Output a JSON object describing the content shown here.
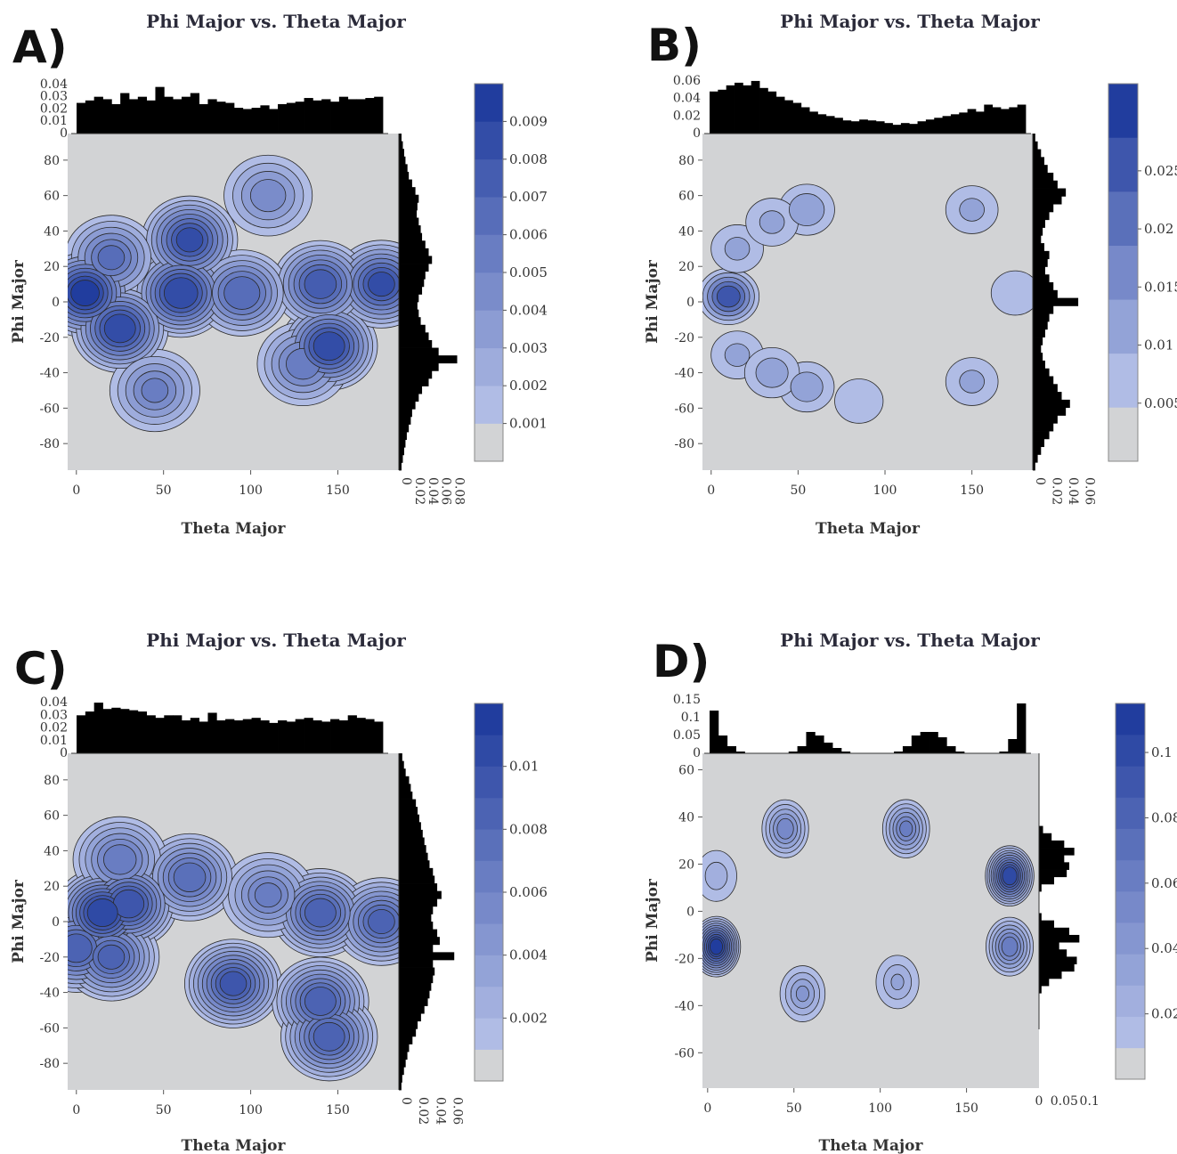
{
  "chart_data": [
    {
      "panel_label": "A)",
      "type": "contour",
      "title": "Phi Major vs. Theta Major",
      "xlabel": "Theta Major",
      "ylabel": "Phi Major",
      "xlim": [
        -5,
        185
      ],
      "ylim": [
        -95,
        95
      ],
      "xticks": [
        0,
        50,
        100,
        150
      ],
      "yticks": [
        -80,
        -60,
        -40,
        -20,
        0,
        20,
        40,
        60,
        80
      ],
      "top_hist_ticks": [
        "0",
        "0.01",
        "0.02",
        "0.03",
        "0.04"
      ],
      "top_hist_max": 0.045,
      "top_hist_values": [
        0.025,
        0.027,
        0.03,
        0.028,
        0.024,
        0.033,
        0.028,
        0.03,
        0.027,
        0.038,
        0.03,
        0.028,
        0.03,
        0.033,
        0.024,
        0.028,
        0.026,
        0.025,
        0.021,
        0.02,
        0.021,
        0.023,
        0.02,
        0.024,
        0.025,
        0.026,
        0.029,
        0.027,
        0.028,
        0.026,
        0.03,
        0.028,
        0.028,
        0.029,
        0.03
      ],
      "side_hist_ticks": [
        "0",
        "0.02",
        "0.04",
        "0.06",
        "0.08"
      ],
      "side_hist_max": 0.09,
      "side_hist_values": [
        0.004,
        0.006,
        0.008,
        0.01,
        0.013,
        0.015,
        0.02,
        0.025,
        0.03,
        0.028,
        0.027,
        0.03,
        0.033,
        0.035,
        0.04,
        0.045,
        0.05,
        0.045,
        0.04,
        0.038,
        0.035,
        0.03,
        0.028,
        0.03,
        0.033,
        0.04,
        0.045,
        0.05,
        0.06,
        0.088,
        0.06,
        0.05,
        0.045,
        0.035,
        0.03,
        0.025,
        0.02,
        0.018,
        0.015,
        0.012,
        0.01,
        0.008,
        0.006,
        0.004
      ],
      "colorbar_ticks": [
        "0.001",
        "0.002",
        "0.003",
        "0.004",
        "0.005",
        "0.006",
        "0.007",
        "0.008",
        "0.009"
      ],
      "levels": [
        0,
        0.001,
        0.002,
        0.003,
        0.004,
        0.005,
        0.006,
        0.007,
        0.008,
        0.009
      ],
      "density_peaks": [
        {
          "theta": 5,
          "phi": 5,
          "value": 0.0092
        },
        {
          "theta": 60,
          "phi": 5,
          "value": 0.0088
        },
        {
          "theta": 25,
          "phi": -15,
          "value": 0.0085
        },
        {
          "theta": 65,
          "phi": 35,
          "value": 0.008
        },
        {
          "theta": 145,
          "phi": -25,
          "value": 0.0085
        },
        {
          "theta": 175,
          "phi": 10,
          "value": 0.008
        },
        {
          "theta": 140,
          "phi": 10,
          "value": 0.0075
        },
        {
          "theta": 95,
          "phi": 5,
          "value": 0.0068
        },
        {
          "theta": 20,
          "phi": 25,
          "value": 0.006
        },
        {
          "theta": 130,
          "phi": -35,
          "value": 0.0055
        },
        {
          "theta": 45,
          "phi": -50,
          "value": 0.005
        },
        {
          "theta": 110,
          "phi": 60,
          "value": 0.0045
        }
      ]
    },
    {
      "panel_label": "B)",
      "type": "contour",
      "title": "Phi Major vs. Theta Major",
      "xlabel": "Theta Major",
      "ylabel": "Phi Major",
      "xlim": [
        -5,
        185
      ],
      "ylim": [
        -95,
        95
      ],
      "xticks": [
        0,
        50,
        100,
        150
      ],
      "yticks": [
        -80,
        -60,
        -40,
        -20,
        0,
        20,
        40,
        60,
        80
      ],
      "top_hist_ticks": [
        "0",
        "0.02",
        "0.04",
        "0.06"
      ],
      "top_hist_max": 0.065,
      "top_hist_values": [
        0.048,
        0.05,
        0.055,
        0.058,
        0.055,
        0.06,
        0.052,
        0.048,
        0.042,
        0.038,
        0.035,
        0.03,
        0.025,
        0.022,
        0.02,
        0.018,
        0.015,
        0.014,
        0.016,
        0.015,
        0.014,
        0.012,
        0.01,
        0.012,
        0.011,
        0.014,
        0.016,
        0.018,
        0.02,
        0.022,
        0.024,
        0.028,
        0.025,
        0.033,
        0.03,
        0.028,
        0.03,
        0.033
      ],
      "side_hist_ticks": [
        "0",
        "0.02",
        "0.04",
        "0.06"
      ],
      "side_hist_max": 0.07,
      "side_hist_values": [
        0.003,
        0.006,
        0.01,
        0.014,
        0.018,
        0.025,
        0.03,
        0.04,
        0.035,
        0.025,
        0.02,
        0.015,
        0.012,
        0.01,
        0.014,
        0.02,
        0.018,
        0.015,
        0.02,
        0.025,
        0.03,
        0.055,
        0.025,
        0.02,
        0.018,
        0.015,
        0.012,
        0.01,
        0.012,
        0.015,
        0.02,
        0.025,
        0.03,
        0.035,
        0.045,
        0.04,
        0.03,
        0.025,
        0.02,
        0.014,
        0.01,
        0.006,
        0.003
      ],
      "colorbar_ticks": [
        "0.005",
        "0.01",
        "0.015",
        "0.02",
        "0.025"
      ],
      "levels": [
        0,
        0.0025,
        0.0075,
        0.0125,
        0.0175,
        0.0225,
        0.0275
      ],
      "density_peaks": [
        {
          "theta": 10,
          "phi": 3,
          "value": 0.026
        },
        {
          "theta": 15,
          "phi": 30,
          "value": 0.009
        },
        {
          "theta": 15,
          "phi": -30,
          "value": 0.009
        },
        {
          "theta": 55,
          "phi": 52,
          "value": 0.012
        },
        {
          "theta": 55,
          "phi": -48,
          "value": 0.011
        },
        {
          "theta": 35,
          "phi": 45,
          "value": 0.009
        },
        {
          "theta": 35,
          "phi": -40,
          "value": 0.011
        },
        {
          "theta": 150,
          "phi": 52,
          "value": 0.009
        },
        {
          "theta": 150,
          "phi": -45,
          "value": 0.009
        },
        {
          "theta": 85,
          "phi": -56,
          "value": 0.007
        },
        {
          "theta": 175,
          "phi": 5,
          "value": 0.007
        }
      ]
    },
    {
      "panel_label": "C)",
      "type": "contour",
      "title": "Phi Major vs. Theta Major",
      "xlabel": "Theta Major",
      "ylabel": "Phi Major",
      "xlim": [
        -5,
        185
      ],
      "ylim": [
        -95,
        95
      ],
      "xticks": [
        0,
        50,
        100,
        150
      ],
      "yticks": [
        -80,
        -60,
        -40,
        -20,
        0,
        20,
        40,
        60,
        80
      ],
      "top_hist_ticks": [
        "0",
        "0.01",
        "0.02",
        "0.03",
        "0.04"
      ],
      "top_hist_max": 0.045,
      "top_hist_values": [
        0.03,
        0.033,
        0.04,
        0.035,
        0.036,
        0.035,
        0.034,
        0.033,
        0.03,
        0.028,
        0.03,
        0.03,
        0.026,
        0.028,
        0.025,
        0.032,
        0.026,
        0.027,
        0.026,
        0.027,
        0.028,
        0.026,
        0.024,
        0.026,
        0.025,
        0.027,
        0.028,
        0.026,
        0.025,
        0.027,
        0.026,
        0.03,
        0.028,
        0.027,
        0.025
      ],
      "side_hist_ticks": [
        "0",
        "0.02",
        "0.04",
        "0.06"
      ],
      "side_hist_max": 0.07,
      "side_hist_values": [
        0.004,
        0.006,
        0.008,
        0.012,
        0.014,
        0.016,
        0.02,
        0.022,
        0.024,
        0.026,
        0.028,
        0.03,
        0.032,
        0.034,
        0.036,
        0.04,
        0.042,
        0.045,
        0.05,
        0.045,
        0.04,
        0.038,
        0.04,
        0.045,
        0.048,
        0.04,
        0.065,
        0.04,
        0.042,
        0.04,
        0.038,
        0.036,
        0.034,
        0.03,
        0.026,
        0.022,
        0.02,
        0.016,
        0.012,
        0.01,
        0.008,
        0.006,
        0.004,
        0.003
      ],
      "colorbar_ticks": [
        "0.002",
        "0.004",
        "0.006",
        "0.008",
        "0.01"
      ],
      "levels": [
        0,
        0.001,
        0.002,
        0.003,
        0.004,
        0.005,
        0.006,
        0.007,
        0.008,
        0.009,
        0.01,
        0.011
      ],
      "density_peaks": [
        {
          "theta": 15,
          "phi": 5,
          "value": 0.0105
        },
        {
          "theta": 30,
          "phi": 10,
          "value": 0.0095
        },
        {
          "theta": 0,
          "phi": -15,
          "value": 0.0085
        },
        {
          "theta": 20,
          "phi": -20,
          "value": 0.008
        },
        {
          "theta": 90,
          "phi": -35,
          "value": 0.009
        },
        {
          "theta": 140,
          "phi": 5,
          "value": 0.0085
        },
        {
          "theta": 175,
          "phi": 0,
          "value": 0.008
        },
        {
          "theta": 140,
          "phi": -45,
          "value": 0.0085
        },
        {
          "theta": 145,
          "phi": -65,
          "value": 0.0085
        },
        {
          "theta": 65,
          "phi": 25,
          "value": 0.0075
        },
        {
          "theta": 25,
          "phi": 35,
          "value": 0.0065
        },
        {
          "theta": 110,
          "phi": 15,
          "value": 0.006
        }
      ]
    },
    {
      "panel_label": "D)",
      "type": "contour",
      "title": "Phi Major vs. Theta Major",
      "xlabel": "Theta Major",
      "ylabel": "Phi Major",
      "xlim": [
        -3,
        192
      ],
      "ylim": [
        -75,
        67
      ],
      "xticks": [
        0,
        50,
        100,
        150
      ],
      "yticks": [
        -60,
        -40,
        -20,
        0,
        20,
        40,
        60
      ],
      "top_hist_ticks": [
        "0",
        "0.05",
        "0.1",
        "0.15"
      ],
      "top_hist_max": 0.16,
      "top_hist_values": [
        0.12,
        0.05,
        0.02,
        0.005,
        0,
        0,
        0,
        0,
        0,
        0.005,
        0.02,
        0.06,
        0.05,
        0.03,
        0.015,
        0.005,
        0,
        0,
        0,
        0,
        0,
        0.005,
        0.02,
        0.05,
        0.06,
        0.06,
        0.045,
        0.02,
        0.005,
        0,
        0,
        0,
        0,
        0.005,
        0.04,
        0.14
      ],
      "side_hist_ticks": [
        "0",
        "0.05",
        "0.1"
      ],
      "side_hist_max": 0.12,
      "side_hist_values": [
        0,
        0,
        0,
        0,
        0,
        0,
        0,
        0,
        0,
        0,
        0.008,
        0.025,
        0.05,
        0.07,
        0.05,
        0.06,
        0.055,
        0.03,
        0.005,
        0,
        0,
        0,
        0.005,
        0.03,
        0.06,
        0.08,
        0.04,
        0.055,
        0.075,
        0.07,
        0.045,
        0.02,
        0.005,
        0,
        0,
        0,
        0,
        0
      ],
      "colorbar_ticks": [
        "0.02",
        "0.04",
        "0.06",
        "0.08",
        "0.1"
      ],
      "levels": [
        0,
        0.005,
        0.015,
        0.025,
        0.035,
        0.045,
        0.055,
        0.065,
        0.075,
        0.085,
        0.095,
        0.105
      ],
      "density_peaks": [
        {
          "theta": 5,
          "phi": 15,
          "value": 0.02
        },
        {
          "theta": 5,
          "phi": -15,
          "value": 0.105
        },
        {
          "theta": 45,
          "phi": 35,
          "value": 0.05
        },
        {
          "theta": 55,
          "phi": -35,
          "value": 0.035
        },
        {
          "theta": 115,
          "phi": 35,
          "value": 0.055
        },
        {
          "theta": 110,
          "phi": -30,
          "value": 0.025
        },
        {
          "theta": 175,
          "phi": 15,
          "value": 0.1
        },
        {
          "theta": 175,
          "phi": -15,
          "value": 0.06
        }
      ]
    }
  ]
}
